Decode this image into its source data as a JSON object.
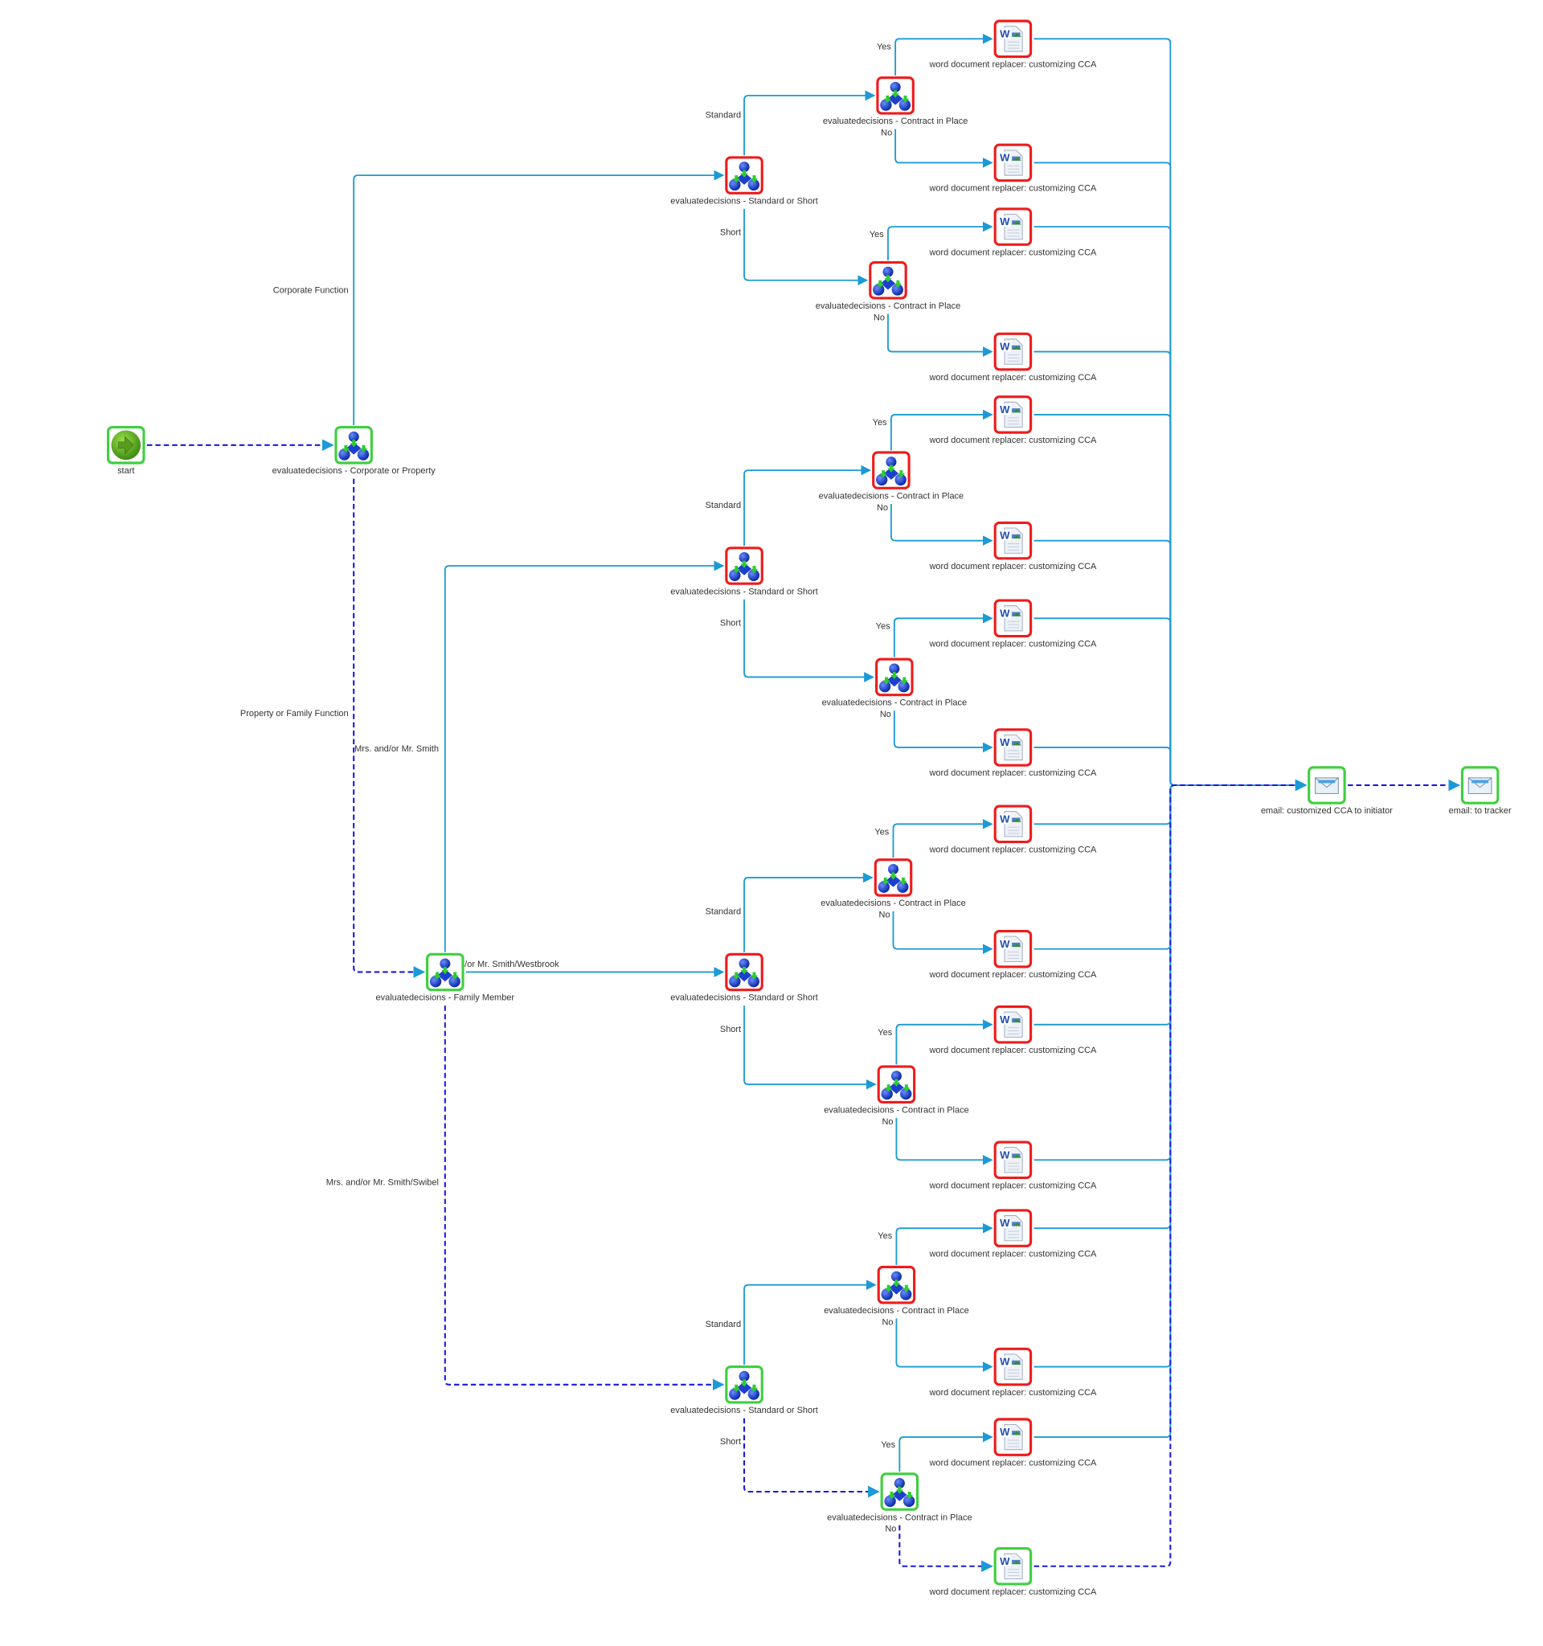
{
  "colors": {
    "completed": "#3fcf3f",
    "error": "#ee1c1c",
    "edge": "#1b9ad6",
    "active_edge": "#1a1ae0"
  },
  "nodes": [
    {
      "id": "start",
      "type": "start",
      "label": "start",
      "status": "completed"
    },
    {
      "id": "corp",
      "type": "decision",
      "label": "evaluatedecisions - Corporate or Property",
      "status": "completed"
    },
    {
      "id": "family",
      "type": "decision",
      "label": "evaluatedecisions - Family Member",
      "status": "completed"
    },
    {
      "id": "sos1",
      "type": "decision",
      "label": "evaluatedecisions - Standard or Short",
      "status": "error"
    },
    {
      "id": "sos2",
      "type": "decision",
      "label": "evaluatedecisions - Standard or Short",
      "status": "error"
    },
    {
      "id": "sos3",
      "type": "decision",
      "label": "evaluatedecisions - Standard or Short",
      "status": "error"
    },
    {
      "id": "sos4",
      "type": "decision",
      "label": "evaluatedecisions - Standard or Short",
      "status": "completed"
    },
    {
      "id": "cip1",
      "type": "decision",
      "label": "evaluatedecisions - Contract in Place",
      "status": "error"
    },
    {
      "id": "cip2",
      "type": "decision",
      "label": "evaluatedecisions - Contract in Place",
      "status": "error"
    },
    {
      "id": "cip3",
      "type": "decision",
      "label": "evaluatedecisions - Contract in Place",
      "status": "error"
    },
    {
      "id": "cip4",
      "type": "decision",
      "label": "evaluatedecisions - Contract in Place",
      "status": "error"
    },
    {
      "id": "cip5",
      "type": "decision",
      "label": "evaluatedecisions - Contract in Place",
      "status": "error"
    },
    {
      "id": "cip6",
      "type": "decision",
      "label": "evaluatedecisions - Contract in Place",
      "status": "error"
    },
    {
      "id": "cip7",
      "type": "decision",
      "label": "evaluatedecisions - Contract in Place",
      "status": "error"
    },
    {
      "id": "cip8",
      "type": "decision",
      "label": "evaluatedecisions - Contract in Place",
      "status": "completed"
    },
    {
      "id": "doc1",
      "type": "word",
      "label": "word document replacer: customizing CCA",
      "status": "error"
    },
    {
      "id": "doc2",
      "type": "word",
      "label": "word document replacer: customizing CCA",
      "status": "error"
    },
    {
      "id": "doc3",
      "type": "word",
      "label": "word document replacer: customizing CCA",
      "status": "error"
    },
    {
      "id": "doc4",
      "type": "word",
      "label": "word document replacer: customizing CCA",
      "status": "error"
    },
    {
      "id": "doc5",
      "type": "word",
      "label": "word document replacer: customizing CCA",
      "status": "error"
    },
    {
      "id": "doc6",
      "type": "word",
      "label": "word document replacer: customizing CCA",
      "status": "error"
    },
    {
      "id": "doc7",
      "type": "word",
      "label": "word document replacer: customizing CCA",
      "status": "error"
    },
    {
      "id": "doc8",
      "type": "word",
      "label": "word document replacer: customizing CCA",
      "status": "error"
    },
    {
      "id": "doc9",
      "type": "word",
      "label": "word document replacer: customizing CCA",
      "status": "error"
    },
    {
      "id": "doc10",
      "type": "word",
      "label": "word document replacer: customizing CCA",
      "status": "error"
    },
    {
      "id": "doc11",
      "type": "word",
      "label": "word document replacer: customizing CCA",
      "status": "error"
    },
    {
      "id": "doc12",
      "type": "word",
      "label": "word document replacer: customizing CCA",
      "status": "error"
    },
    {
      "id": "doc13",
      "type": "word",
      "label": "word document replacer: customizing CCA",
      "status": "error"
    },
    {
      "id": "doc14",
      "type": "word",
      "label": "word document replacer: customizing CCA",
      "status": "error"
    },
    {
      "id": "doc15",
      "type": "word",
      "label": "word document replacer: customizing CCA",
      "status": "error"
    },
    {
      "id": "doc16",
      "type": "word",
      "label": "word document replacer: customizing CCA",
      "status": "completed"
    },
    {
      "id": "email1",
      "type": "email",
      "label": "email: customized CCA to initiator",
      "status": "completed"
    },
    {
      "id": "email2",
      "type": "email",
      "label": "email: to tracker",
      "status": "completed"
    }
  ],
  "edges": [
    {
      "from": "start",
      "to": "corp",
      "label": "",
      "active": true
    },
    {
      "from": "corp",
      "to": "sos1",
      "label": "Corporate Function",
      "active": false
    },
    {
      "from": "corp",
      "to": "family",
      "label": "Property or Family Function",
      "active": true
    },
    {
      "from": "family",
      "to": "sos2",
      "label": "Mrs. and/or Mr. Smith",
      "active": false
    },
    {
      "from": "family",
      "to": "sos3",
      "label": "Mrs. and/or Mr. Smith/Westbrook",
      "active": false
    },
    {
      "from": "family",
      "to": "sos4",
      "label": "Mrs. and/or Mr. Smith/Swibel",
      "active": true
    },
    {
      "from": "sos1",
      "to": "cip1",
      "label": "Standard",
      "active": false
    },
    {
      "from": "sos1",
      "to": "cip2",
      "label": "Short",
      "active": false
    },
    {
      "from": "sos2",
      "to": "cip3",
      "label": "Standard",
      "active": false
    },
    {
      "from": "sos2",
      "to": "cip4",
      "label": "Short",
      "active": false
    },
    {
      "from": "sos3",
      "to": "cip5",
      "label": "Standard",
      "active": false
    },
    {
      "from": "sos3",
      "to": "cip6",
      "label": "Short",
      "active": false
    },
    {
      "from": "sos4",
      "to": "cip7",
      "label": "Standard",
      "active": false
    },
    {
      "from": "sos4",
      "to": "cip8",
      "label": "Short",
      "active": true
    },
    {
      "from": "cip1",
      "to": "doc1",
      "label": "Yes",
      "active": false
    },
    {
      "from": "cip1",
      "to": "doc2",
      "label": "No",
      "active": false
    },
    {
      "from": "cip2",
      "to": "doc3",
      "label": "Yes",
      "active": false
    },
    {
      "from": "cip2",
      "to": "doc4",
      "label": "No",
      "active": false
    },
    {
      "from": "cip3",
      "to": "doc5",
      "label": "Yes",
      "active": false
    },
    {
      "from": "cip3",
      "to": "doc6",
      "label": "No",
      "active": false
    },
    {
      "from": "cip4",
      "to": "doc7",
      "label": "Yes",
      "active": false
    },
    {
      "from": "cip4",
      "to": "doc8",
      "label": "No",
      "active": false
    },
    {
      "from": "cip5",
      "to": "doc9",
      "label": "Yes",
      "active": false
    },
    {
      "from": "cip5",
      "to": "doc10",
      "label": "No",
      "active": false
    },
    {
      "from": "cip6",
      "to": "doc11",
      "label": "Yes",
      "active": false
    },
    {
      "from": "cip6",
      "to": "doc12",
      "label": "No",
      "active": false
    },
    {
      "from": "cip7",
      "to": "doc13",
      "label": "Yes",
      "active": false
    },
    {
      "from": "cip7",
      "to": "doc14",
      "label": "No",
      "active": false
    },
    {
      "from": "cip8",
      "to": "doc15",
      "label": "Yes",
      "active": false
    },
    {
      "from": "cip8",
      "to": "doc16",
      "label": "No",
      "active": true
    },
    {
      "from": "doc1",
      "to": "email1",
      "label": "",
      "active": false
    },
    {
      "from": "doc2",
      "to": "email1",
      "label": "",
      "active": false
    },
    {
      "from": "doc3",
      "to": "email1",
      "label": "",
      "active": false
    },
    {
      "from": "doc4",
      "to": "email1",
      "label": "",
      "active": false
    },
    {
      "from": "doc5",
      "to": "email1",
      "label": "",
      "active": false
    },
    {
      "from": "doc6",
      "to": "email1",
      "label": "",
      "active": false
    },
    {
      "from": "doc7",
      "to": "email1",
      "label": "",
      "active": false
    },
    {
      "from": "doc8",
      "to": "email1",
      "label": "",
      "active": false
    },
    {
      "from": "doc9",
      "to": "email1",
      "label": "",
      "active": false
    },
    {
      "from": "doc10",
      "to": "email1",
      "label": "",
      "active": false
    },
    {
      "from": "doc11",
      "to": "email1",
      "label": "",
      "active": false
    },
    {
      "from": "doc12",
      "to": "email1",
      "label": "",
      "active": false
    },
    {
      "from": "doc13",
      "to": "email1",
      "label": "",
      "active": false
    },
    {
      "from": "doc14",
      "to": "email1",
      "label": "",
      "active": false
    },
    {
      "from": "doc15",
      "to": "email1",
      "label": "",
      "active": false
    },
    {
      "from": "doc16",
      "to": "email1",
      "label": "",
      "active": true
    },
    {
      "from": "email1",
      "to": "email2",
      "label": "",
      "active": true
    }
  ]
}
